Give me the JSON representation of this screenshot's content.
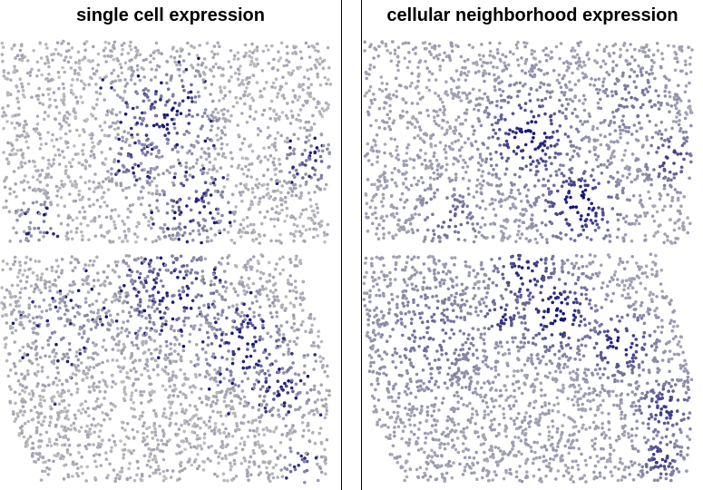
{
  "panels": [
    {
      "id": "left",
      "title": "single cell expression"
    },
    {
      "id": "right",
      "title": "cellular neighborhood expression"
    }
  ],
  "colors": {
    "low": "#c0c0c0",
    "high": "#13137a"
  },
  "chart_data": [
    {
      "type": "scatter",
      "title": "single cell expression",
      "color_scale": [
        "#c0c0c0",
        "#13137a"
      ],
      "axes": "none",
      "grid": false
    },
    {
      "type": "scatter",
      "title": "cellular neighborhood expression",
      "color_scale": [
        "#c0c0c0",
        "#13137a"
      ],
      "axes": "none",
      "grid": false
    }
  ]
}
